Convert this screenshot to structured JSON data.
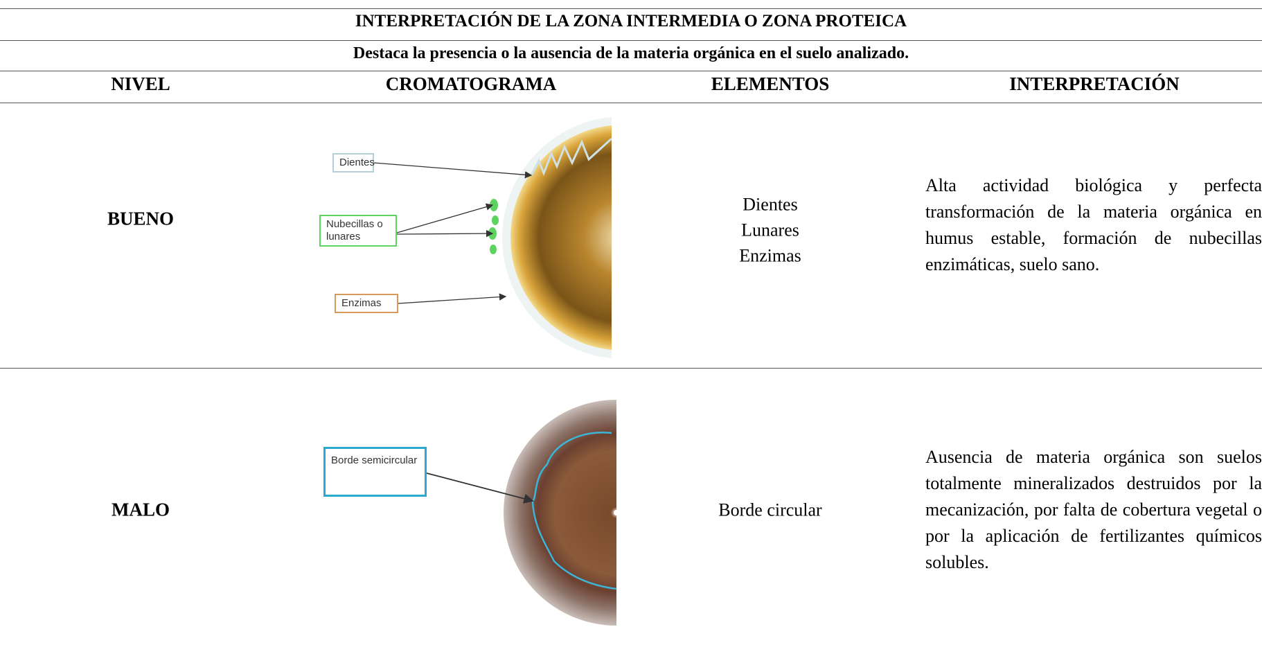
{
  "title": "INTERPRETACIÓN DE LA ZONA INTERMEDIA O ZONA PROTEICA",
  "subtitle": "Destaca la presencia o la ausencia de la materia orgánica en el suelo analizado.",
  "table": {
    "headers": [
      "NIVEL",
      "CROMATOGRAMA",
      "ELEMENTOS",
      "INTERPRETACIÓN"
    ],
    "rows": [
      {
        "level": "BUENO",
        "chromatogram_labels": [
          "Dientes",
          "Nubecillas o lunares",
          "Enzimas"
        ],
        "elements": [
          "Dientes",
          "Lunares",
          "Enzimas"
        ],
        "interpretation": "Alta actividad biológica y perfecta transformación de la materia orgánica en humus estable, formación de nubecillas enzimáticas, suelo sano."
      },
      {
        "level": "MALO",
        "chromatogram_labels": [
          "Borde semicircular"
        ],
        "elements": [
          "Borde circular"
        ],
        "interpretation": "Ausencia de materia orgánica son suelos totalmente mineralizados destruidos por la mecanización, por falta de cobertura vegetal o por la aplicación de fertilizantes químicos solubles."
      }
    ]
  }
}
